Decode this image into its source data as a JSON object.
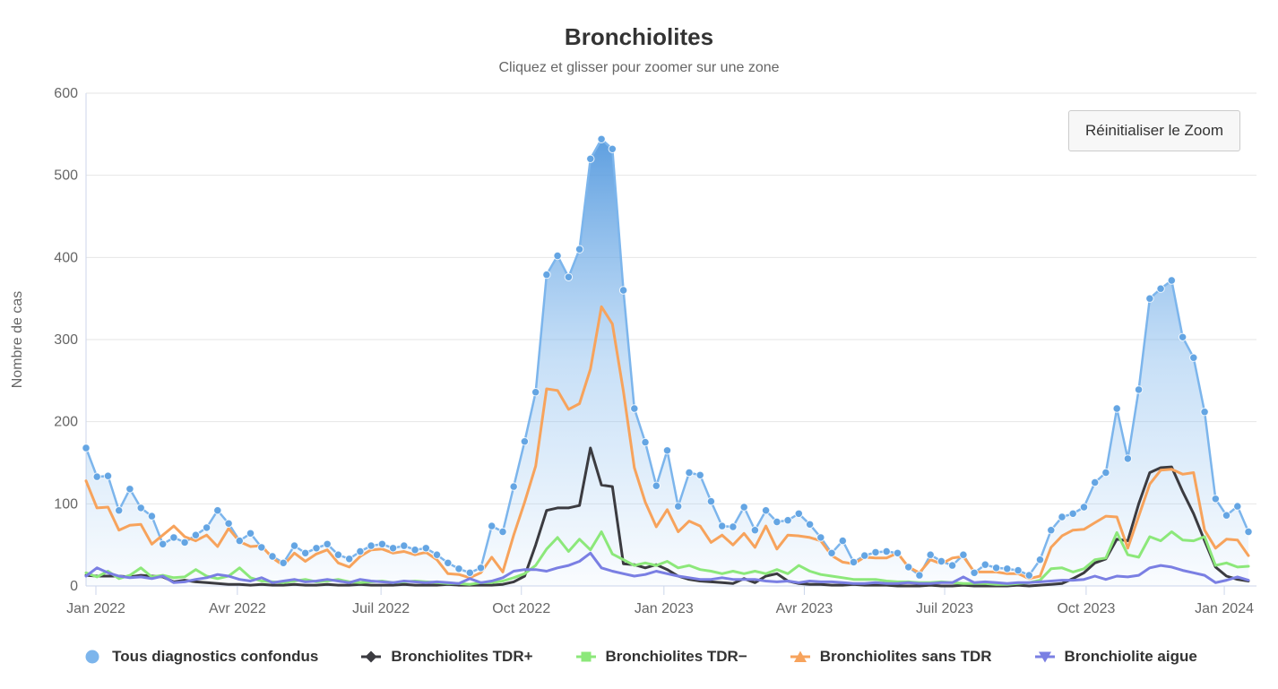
{
  "title": "Bronchiolites",
  "subtitle": "Cliquez et glisser pour zoomer sur une zone",
  "reset_zoom_label": "Réinitialiser le Zoom",
  "colors": {
    "blue": "#7cb5ec",
    "blue_marker": "#64a5e3",
    "black": "#3b3b40",
    "green": "#8ce87a",
    "orange": "#f7a35c",
    "purple": "#7a7fe3",
    "grid": "#e6e6e6",
    "axis_line": "#ccd6eb",
    "text": "#333333",
    "muted_text": "#666666"
  },
  "chart_data": {
    "type": "area",
    "title": "Bronchiolites",
    "subtitle": "Cliquez et glisser pour zoomer sur une zone",
    "ylabel": "Nombre de cas",
    "ylim": [
      0,
      600
    ],
    "y_ticks": [
      0,
      100,
      200,
      300,
      400,
      500,
      600
    ],
    "x_unit": "week",
    "n_points": 107,
    "x_tick_labels": [
      "Jan 2022",
      "Avr 2022",
      "Juil 2022",
      "Oct 2022",
      "Jan 2023",
      "Avr 2023",
      "Juil 2023",
      "Oct 2023",
      "Jan 2024"
    ],
    "x_tick_positions": [
      0.9,
      13.8,
      26.9,
      39.7,
      52.7,
      65.5,
      78.3,
      91.2,
      103.8
    ],
    "grid": true,
    "legend_position": "bottom",
    "series": [
      {
        "name": "Tous diagnostics confondus",
        "type": "area",
        "color": "#7cb5ec",
        "marker": "circle",
        "values": [
          168,
          133,
          134,
          92,
          118,
          95,
          85,
          51,
          59,
          53,
          62,
          71,
          92,
          76,
          55,
          64,
          47,
          36,
          28,
          49,
          40,
          46,
          51,
          38,
          33,
          42,
          49,
          51,
          46,
          49,
          44,
          46,
          38,
          28,
          21,
          16,
          22,
          73,
          66,
          121,
          176,
          236,
          379,
          402,
          376,
          410,
          520,
          544,
          532,
          360,
          216,
          175,
          122,
          165,
          97,
          138,
          135,
          103,
          73,
          72,
          96,
          68,
          92,
          78,
          80,
          88,
          75,
          59,
          40,
          55,
          29,
          37,
          41,
          42,
          40,
          23,
          13,
          38,
          30,
          25,
          38,
          16,
          26,
          22,
          21,
          19,
          13,
          32,
          68,
          84,
          88,
          96,
          126,
          138,
          216,
          155,
          239,
          350,
          362,
          372,
          303,
          278,
          212,
          106,
          86,
          97,
          66
        ]
      },
      {
        "name": "Bronchiolites TDR+",
        "type": "line",
        "color": "#3b3b40",
        "marker": "diamond",
        "values": [
          13,
          12,
          12,
          12,
          11,
          13,
          12,
          11,
          5,
          7,
          5,
          4,
          3,
          2,
          2,
          1,
          2,
          1,
          1,
          2,
          1,
          1,
          2,
          1,
          1,
          2,
          1,
          1,
          1,
          2,
          1,
          1,
          1,
          2,
          1,
          1,
          1,
          1,
          2,
          5,
          12,
          50,
          92,
          95,
          95,
          98,
          168,
          123,
          121,
          27,
          26,
          22,
          26,
          20,
          12,
          8,
          6,
          5,
          4,
          3,
          9,
          4,
          12,
          15,
          6,
          3,
          2,
          2,
          1,
          1,
          2,
          1,
          1,
          1,
          0,
          0,
          0,
          1,
          0,
          0,
          1,
          0,
          0,
          0,
          0,
          1,
          0,
          1,
          2,
          3,
          9,
          16,
          28,
          33,
          57,
          55,
          100,
          138,
          144,
          145,
          115,
          88,
          55,
          23,
          12,
          8,
          6
        ]
      },
      {
        "name": "Bronchiolites TDR−",
        "type": "line",
        "color": "#8ce87a",
        "marker": "square",
        "values": [
          16,
          11,
          18,
          9,
          13,
          22,
          11,
          13,
          10,
          11,
          20,
          12,
          9,
          12,
          22,
          10,
          6,
          5,
          4,
          6,
          8,
          5,
          6,
          8,
          5,
          4,
          5,
          6,
          4,
          5,
          6,
          5,
          4,
          3,
          3,
          2,
          4,
          4,
          6,
          10,
          15,
          25,
          45,
          59,
          42,
          57,
          44,
          66,
          39,
          32,
          25,
          28,
          25,
          30,
          22,
          25,
          20,
          18,
          15,
          18,
          15,
          18,
          15,
          20,
          15,
          25,
          18,
          14,
          12,
          10,
          8,
          8,
          8,
          6,
          5,
          5,
          4,
          4,
          5,
          4,
          3,
          3,
          3,
          2,
          2,
          3,
          4,
          7,
          21,
          22,
          17,
          21,
          32,
          34,
          65,
          38,
          35,
          60,
          55,
          66,
          56,
          55,
          60,
          25,
          28,
          23,
          24
        ]
      },
      {
        "name": "Bronchiolites sans TDR",
        "type": "line",
        "color": "#f7a35c",
        "marker": "triangle",
        "values": [
          128,
          95,
          96,
          68,
          74,
          75,
          51,
          62,
          73,
          60,
          55,
          62,
          48,
          70,
          54,
          48,
          49,
          34,
          25,
          40,
          30,
          39,
          44,
          28,
          23,
          36,
          44,
          45,
          40,
          42,
          38,
          41,
          32,
          15,
          14,
          10,
          16,
          35,
          17,
          62,
          102,
          146,
          240,
          238,
          215,
          222,
          264,
          340,
          319,
          237,
          144,
          102,
          72,
          93,
          66,
          79,
          73,
          53,
          62,
          50,
          64,
          47,
          73,
          45,
          62,
          61,
          59,
          55,
          37,
          29,
          27,
          35,
          34,
          34,
          40,
          23,
          16,
          32,
          27,
          34,
          36,
          17,
          17,
          17,
          15,
          15,
          9,
          12,
          47,
          61,
          68,
          69,
          77,
          85,
          84,
          46,
          85,
          124,
          141,
          142,
          136,
          138,
          68,
          46,
          57,
          56,
          37
        ]
      },
      {
        "name": "Bronchiolite aigue",
        "type": "line",
        "color": "#7a7fe3",
        "marker": "triangle-down",
        "values": [
          12,
          22,
          16,
          12,
          10,
          11,
          9,
          12,
          4,
          5,
          8,
          10,
          14,
          12,
          8,
          6,
          10,
          4,
          6,
          8,
          5,
          6,
          8,
          6,
          4,
          8,
          6,
          5,
          4,
          6,
          5,
          4,
          5,
          4,
          3,
          9,
          4,
          6,
          10,
          18,
          20,
          20,
          18,
          22,
          25,
          30,
          40,
          22,
          18,
          15,
          12,
          14,
          18,
          15,
          12,
          10,
          8,
          8,
          10,
          8,
          8,
          8,
          6,
          5,
          6,
          4,
          6,
          5,
          5,
          4,
          3,
          3,
          4,
          3,
          3,
          4,
          3,
          3,
          4,
          4,
          11,
          4,
          5,
          4,
          3,
          4,
          4,
          5,
          6,
          7,
          7,
          8,
          12,
          8,
          12,
          11,
          13,
          22,
          25,
          23,
          19,
          16,
          13,
          4,
          7,
          11,
          7
        ]
      }
    ]
  },
  "legend": [
    {
      "label": "Tous diagnostics confondus",
      "marker": "circle",
      "color": "#7cb5ec"
    },
    {
      "label": "Bronchiolites TDR+",
      "marker": "diamond",
      "color": "#3b3b40"
    },
    {
      "label": "Bronchiolites TDR−",
      "marker": "square",
      "color": "#8ce87a"
    },
    {
      "label": "Bronchiolites sans TDR",
      "marker": "triangle",
      "color": "#f7a35c"
    },
    {
      "label": "Bronchiolite aigue",
      "marker": "triangle-down",
      "color": "#7a7fe3"
    }
  ]
}
